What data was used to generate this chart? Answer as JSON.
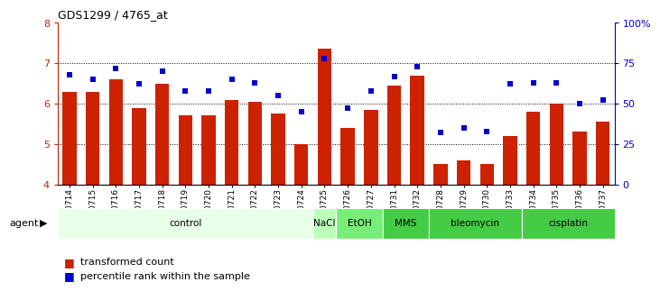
{
  "title": "GDS1299 / 4765_at",
  "samples": [
    "GSM40714",
    "GSM40715",
    "GSM40716",
    "GSM40717",
    "GSM40718",
    "GSM40719",
    "GSM40720",
    "GSM40721",
    "GSM40722",
    "GSM40723",
    "GSM40724",
    "GSM40725",
    "GSM40726",
    "GSM40727",
    "GSM40731",
    "GSM40732",
    "GSM40728",
    "GSM40729",
    "GSM40730",
    "GSM40733",
    "GSM40734",
    "GSM40735",
    "GSM40736",
    "GSM40737"
  ],
  "bar_values": [
    6.3,
    6.3,
    6.6,
    5.9,
    6.5,
    5.7,
    5.7,
    6.1,
    6.05,
    5.75,
    5.0,
    7.35,
    5.4,
    5.85,
    6.45,
    6.7,
    4.5,
    4.6,
    4.5,
    5.2,
    5.8,
    6.0,
    5.3,
    5.55
  ],
  "percentile_values": [
    68,
    65,
    72,
    62,
    70,
    58,
    58,
    65,
    63,
    55,
    45,
    78,
    47,
    58,
    67,
    73,
    32,
    35,
    33,
    62,
    63,
    63,
    50,
    52
  ],
  "ylim": [
    4,
    8
  ],
  "yticks": [
    4,
    5,
    6,
    7,
    8
  ],
  "right_yticks": [
    0,
    25,
    50,
    75,
    100
  ],
  "right_ylabels": [
    "0",
    "25",
    "50",
    "75",
    "100%"
  ],
  "bar_color": "#cc2200",
  "dot_color": "#0000cc",
  "background_color": "#ffffff",
  "agents_data": [
    {
      "label": "control",
      "start": 0,
      "end": 11,
      "color": "#e8ffe8"
    },
    {
      "label": "NaCl",
      "start": 11,
      "end": 12,
      "color": "#bbffbb"
    },
    {
      "label": "EtOH",
      "start": 12,
      "end": 14,
      "color": "#77ee77"
    },
    {
      "label": "MMS",
      "start": 14,
      "end": 16,
      "color": "#44cc44"
    },
    {
      "label": "bleomycin",
      "start": 16,
      "end": 20,
      "color": "#44cc44"
    },
    {
      "label": "cisplatin",
      "start": 20,
      "end": 24,
      "color": "#44cc44"
    }
  ]
}
